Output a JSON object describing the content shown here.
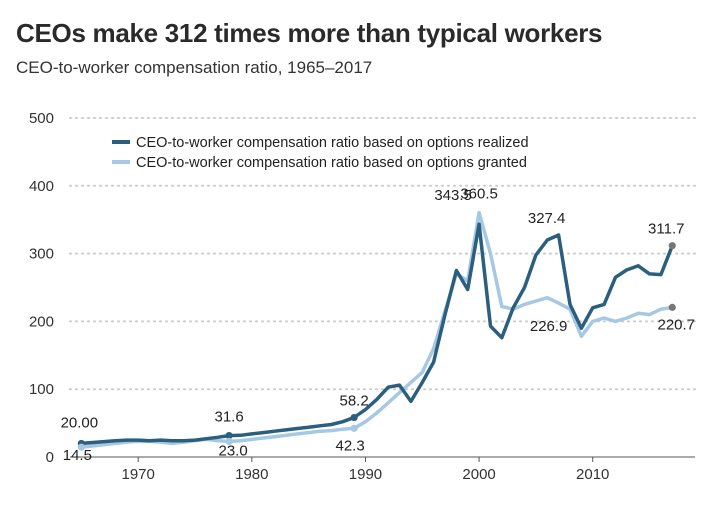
{
  "chart_data": {
    "type": "line",
    "title": "CEOs make 312 times more than typical workers",
    "subtitle": "CEO-to-worker compensation ratio, 1965–2017",
    "xlabel": "",
    "ylabel": "",
    "xlim": [
      1964,
      2019
    ],
    "ylim": [
      0,
      500
    ],
    "x_ticks": [
      1970,
      1980,
      1990,
      2000,
      2010
    ],
    "y_ticks": [
      0,
      100,
      200,
      300,
      400,
      500
    ],
    "grid": "horizontal dotted",
    "legend_position": "top-left",
    "series": [
      {
        "name": "CEO-to-worker compensation ratio based on options realized",
        "color": "#2a5f7f",
        "x": [
          1965,
          1968,
          1969,
          1970,
          1971,
          1972,
          1973,
          1974,
          1975,
          1976,
          1977,
          1978,
          1979,
          1980,
          1981,
          1982,
          1983,
          1984,
          1985,
          1986,
          1987,
          1988,
          1989,
          1990,
          1991,
          1992,
          1993,
          1994,
          1995,
          1996,
          1997,
          1998,
          1999,
          2000,
          2001,
          2002,
          2003,
          2004,
          2005,
          2006,
          2007,
          2008,
          2009,
          2010,
          2011,
          2012,
          2013,
          2014,
          2015,
          2016,
          2017
        ],
        "values": [
          20.0,
          24,
          25,
          25,
          24,
          25,
          24,
          24,
          25,
          27,
          29,
          31.6,
          32,
          34,
          36,
          38,
          40,
          42,
          44,
          46,
          48,
          52,
          58.2,
          70,
          85,
          103,
          106,
          82,
          110,
          140,
          210,
          275,
          247,
          343.5,
          193,
          176,
          220,
          250,
          298,
          320,
          327.4,
          225,
          190,
          220,
          225,
          265,
          276,
          282,
          270,
          269,
          311.7
        ]
      },
      {
        "name": "CEO-to-worker compensation ratio based on options granted",
        "color": "#a6c8e5",
        "x": [
          1965,
          1968,
          1969,
          1970,
          1971,
          1972,
          1973,
          1974,
          1975,
          1976,
          1977,
          1978,
          1979,
          1980,
          1981,
          1982,
          1983,
          1984,
          1985,
          1986,
          1987,
          1988,
          1989,
          1990,
          1991,
          1992,
          1993,
          1994,
          1995,
          1996,
          1997,
          1998,
          1999,
          2000,
          2001,
          2002,
          2003,
          2004,
          2005,
          2006,
          2007,
          2008,
          2009,
          2010,
          2011,
          2012,
          2013,
          2014,
          2015,
          2016,
          2017
        ],
        "values": [
          14.5,
          20,
          22,
          23,
          23,
          22,
          20,
          22,
          24,
          26,
          24,
          23.0,
          24,
          26,
          28,
          30,
          32,
          34,
          36,
          38,
          39,
          41,
          42.3,
          52,
          65,
          80,
          95,
          110,
          125,
          160,
          215,
          270,
          260,
          360.5,
          300,
          222,
          218,
          225,
          230,
          235,
          227,
          218,
          178,
          200,
          205,
          200,
          205,
          212,
          210,
          218,
          220.7
        ]
      }
    ],
    "annotations": {
      "realized": [
        {
          "year": 1965,
          "label": "20.00"
        },
        {
          "year": 1978,
          "label": "31.6"
        },
        {
          "year": 1989,
          "label": "58.2"
        },
        {
          "year": 2000,
          "label": "343.5"
        },
        {
          "year": 2007,
          "label": "327.4"
        },
        {
          "year": 2017,
          "label": "311.7"
        }
      ],
      "granted": [
        {
          "year": 1965,
          "label": "14.5"
        },
        {
          "year": 1978,
          "label": "23.0"
        },
        {
          "year": 1989,
          "label": "42.3"
        },
        {
          "year": 2000,
          "label": "360.5"
        },
        {
          "year": 2007,
          "label": "226.9"
        },
        {
          "year": 2017,
          "label": "220.7"
        }
      ]
    }
  }
}
